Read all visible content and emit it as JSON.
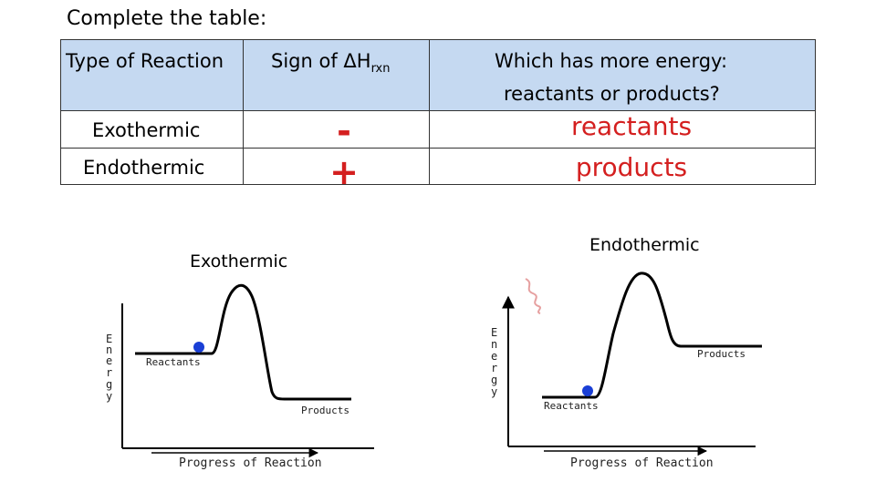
{
  "prompt": "Complete the table:",
  "table": {
    "headers": {
      "type": "Type of Reaction",
      "sign_prefix": "Sign of ΔH",
      "sign_sub": "rxn",
      "energy_line1": "Which has more energy:",
      "energy_line2": "reactants or products?"
    },
    "rows": [
      {
        "type": "Exothermic",
        "sign": "-",
        "more_energy": "reactants"
      },
      {
        "type": "Endothermic",
        "sign": "+",
        "more_energy": "products"
      }
    ]
  },
  "diagrams": {
    "left": {
      "title": "Exothermic",
      "y_label": [
        "E",
        "n",
        "e",
        "r",
        "g",
        "y"
      ],
      "x_label": "Progress of Reaction",
      "reactants_label": "Reactants",
      "products_label": "Products"
    },
    "right": {
      "title": "Endothermic",
      "y_label": [
        "E",
        "n",
        "e",
        "r",
        "g",
        "y"
      ],
      "x_label": "Progress of Reaction",
      "reactants_label": "Reactants",
      "products_label": "Products"
    }
  },
  "colors": {
    "header_bg": "#c5d9f1",
    "answer_red": "#d41f1f",
    "dot_blue": "#1a3fd6",
    "squiggle_pink": "#e6a0a0"
  }
}
